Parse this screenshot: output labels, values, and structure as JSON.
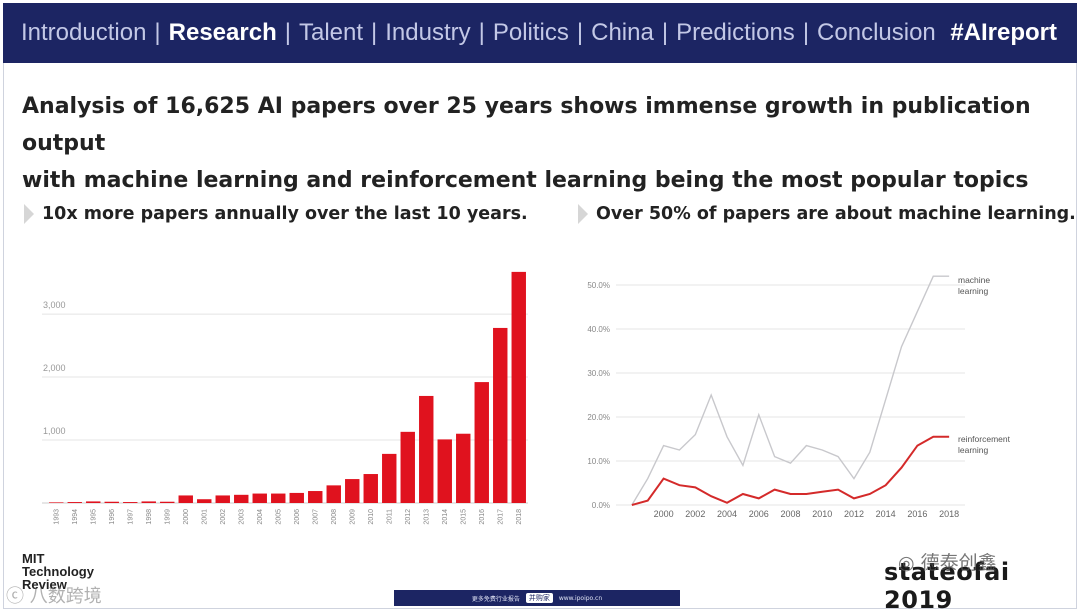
{
  "nav": {
    "items": [
      "Introduction",
      "Research",
      "Talent",
      "Industry",
      "Politics",
      "China",
      "Predictions",
      "Conclusion"
    ],
    "active_index": 1,
    "hashtag": "#AIreport"
  },
  "headline": {
    "line1": "Analysis of 16,625 AI papers over 25 years shows immense growth in publication output",
    "line2": "with machine learning and reinforcement learning being the most popular topics"
  },
  "left_subtitle": "10x more papers annually over the last 10 years.",
  "right_subtitle": "Over 50% of papers are about machine learning.",
  "chart_data": [
    {
      "type": "bar",
      "categories": [
        "1993",
        "1994",
        "1995",
        "1996",
        "1997",
        "1998",
        "1999",
        "2000",
        "2001",
        "2002",
        "2003",
        "2004",
        "2005",
        "2006",
        "2007",
        "2008",
        "2009",
        "2010",
        "2011",
        "2012",
        "2013",
        "2014",
        "2015",
        "2016",
        "2017",
        "2018"
      ],
      "values": [
        10,
        15,
        25,
        20,
        15,
        25,
        20,
        120,
        60,
        120,
        130,
        150,
        150,
        160,
        190,
        280,
        380,
        460,
        780,
        1130,
        1700,
        1010,
        1100,
        1920,
        2780,
        3670
      ],
      "ylim": [
        0,
        3700
      ],
      "yticks": [
        1000,
        2000,
        3000
      ],
      "ytick_labels": [
        "1,000",
        "2,000",
        "3,000"
      ],
      "color": "#e0121e",
      "grid": true
    },
    {
      "type": "line",
      "x": [
        1998,
        1999,
        2000,
        2001,
        2002,
        2003,
        2004,
        2005,
        2006,
        2007,
        2008,
        2009,
        2010,
        2011,
        2012,
        2013,
        2014,
        2015,
        2016,
        2017,
        2018
      ],
      "xticks": [
        2000,
        2002,
        2004,
        2006,
        2008,
        2010,
        2012,
        2014,
        2016,
        2018
      ],
      "xlim": [
        1997,
        2019
      ],
      "ylim": [
        0,
        52
      ],
      "yticks": [
        0,
        10,
        20,
        30,
        40,
        50
      ],
      "ytick_labels": [
        "0.0%",
        "10.0%",
        "20.0%",
        "30.0%",
        "40.0%",
        "50.0%"
      ],
      "grid": true,
      "series": [
        {
          "name": "machine learning",
          "label_lines": [
            "machine",
            "learning"
          ],
          "color": "#c8c8cc",
          "values": [
            0,
            6,
            13.5,
            12.5,
            16,
            25,
            15.5,
            9,
            20.5,
            11,
            9.5,
            13.5,
            12.5,
            11,
            6,
            12,
            24,
            36,
            44,
            52,
            52
          ]
        },
        {
          "name": "reinforcement learning",
          "label_lines": [
            "reinforcement",
            "learning"
          ],
          "color": "#d42a2a",
          "values": [
            0,
            1,
            6,
            4.5,
            4,
            2,
            0.5,
            2.5,
            1.5,
            3.5,
            2.5,
            2.5,
            3,
            3.5,
            1.5,
            2.5,
            4.5,
            8.5,
            13.5,
            15.5,
            15.5
          ]
        }
      ]
    }
  ],
  "brand": {
    "mit_lines": [
      "MIT",
      "Technology",
      "Review"
    ],
    "footer_text_left": "更多免费行业报告",
    "footer_pill": "并购家",
    "footer_text_right": "www.ipoipo.cn",
    "stateof": "stateofai 2019",
    "wechat_watermark": "德泰创鑫",
    "left_watermark": "八数跨境"
  }
}
